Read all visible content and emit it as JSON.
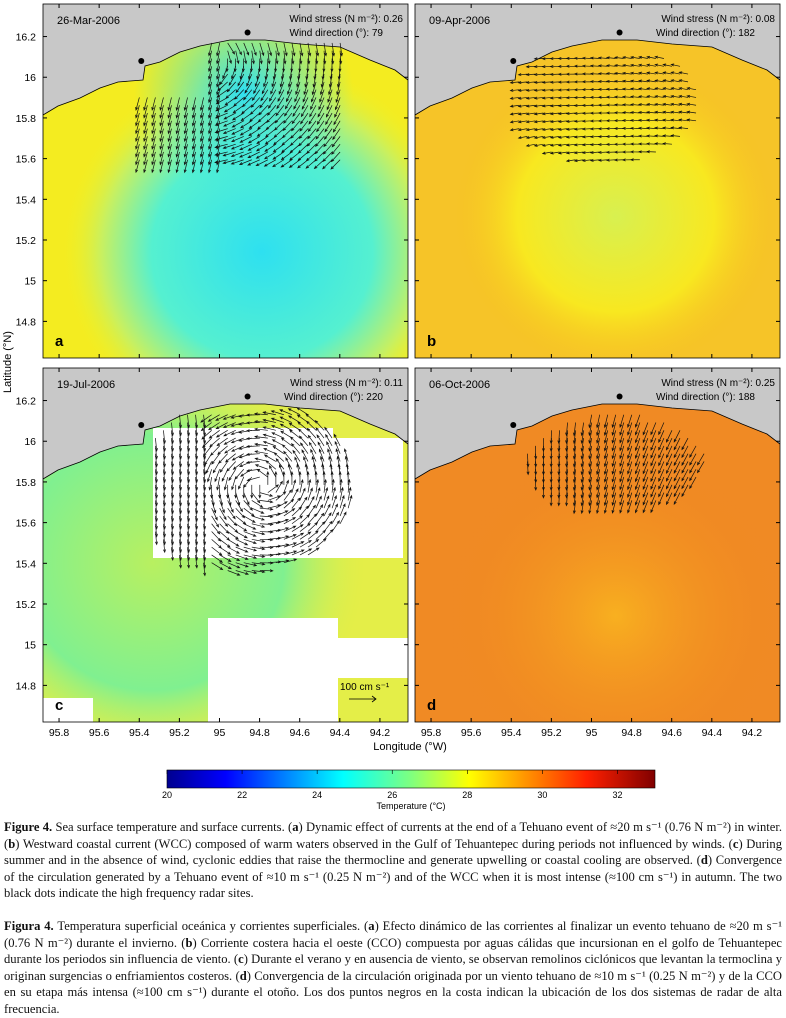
{
  "chart_data": {
    "type": "heatmap",
    "xlabel": "Longitude (°W)",
    "ylabel": "Latitude (°N)",
    "xticks": [
      "95.8",
      "95.6",
      "95.4",
      "95.2",
      "95",
      "94.8",
      "94.6",
      "94.4",
      "94.2"
    ],
    "yticks": [
      "16.2",
      "16",
      "15.8",
      "15.6",
      "15.4",
      "15.2",
      "15",
      "14.8"
    ],
    "xlim": [
      95.88,
      94.06
    ],
    "ylim": [
      14.62,
      16.36
    ],
    "panels": [
      {
        "letter": "a",
        "date": "26-Mar-2006",
        "wind_stress": "Wind stress (N m⁻²): 0.26",
        "wind_direction": "Wind direction (°): 79",
        "pattern": "cold tongue, offshore jet with dipole eddies"
      },
      {
        "letter": "b",
        "date": "09-Apr-2006",
        "wind_stress": "Wind stress (N m⁻²): 0.08",
        "wind_direction": "Wind direction (°): 182",
        "pattern": "westward coastal current, warm"
      },
      {
        "letter": "c",
        "date": "19-Jul-2006",
        "wind_stress": "Wind stress (N m⁻²): 0.11",
        "wind_direction": "Wind direction (°): 220",
        "pattern": "cyclonic eddy, gaps in SST"
      },
      {
        "letter": "d",
        "date": "06-Oct-2006",
        "wind_stress": "Wind stress (N m⁻²): 0.25",
        "wind_direction": "Wind direction (°): 188",
        "pattern": "convergence, warm"
      }
    ],
    "scale_label": "100 cm s⁻¹",
    "colorbar": {
      "label": "Temperature (°C)",
      "ticks": [
        "20",
        "22",
        "24",
        "26",
        "28",
        "30",
        "32"
      ],
      "range": [
        20,
        33
      ],
      "colormap": "jet"
    },
    "colors": {
      "land": "#c8c8c8",
      "arrows": "#111111",
      "radar_sites": "#000000"
    }
  },
  "caption_en": [
    {
      "t": "Figure 4.",
      "b": true
    },
    {
      "t": " Sea surface temperature and surface currents. ("
    },
    {
      "t": "a",
      "b": true
    },
    {
      "t": ") Dynamic effect of currents at the end of a Tehuano event of ≈20 m s⁻¹ (0.76 N m⁻²) in winter. ("
    },
    {
      "t": "b",
      "b": true
    },
    {
      "t": ") Westward coastal current (WCC) composed of warm waters observed in the Gulf of Tehuantepec during periods not influenced by winds. ("
    },
    {
      "t": "c",
      "b": true
    },
    {
      "t": ") During summer and in the absence of wind, cyclonic eddies that raise the thermocline and generate upwelling or coastal cooling are observed. ("
    },
    {
      "t": "d",
      "b": true
    },
    {
      "t": ") Convergence of the circulation generated by a Tehuano event of ≈10 m s⁻¹ (0.25 N m⁻²) and of the WCC when it is most intense (≈100 cm s⁻¹) in autumn. The two black dots indicate the high frequency radar sites."
    }
  ],
  "caption_es": [
    {
      "t": "Figura 4.",
      "b": true
    },
    {
      "t": " Temperatura superficial oceánica y corrientes superficiales. ("
    },
    {
      "t": "a",
      "b": true
    },
    {
      "t": ") Efecto dinámico de las corrientes al finalizar un evento tehuano de ≈20 m s⁻¹ (0.76 N m⁻²) durante el invierno. ("
    },
    {
      "t": "b",
      "b": true
    },
    {
      "t": ") Corriente costera hacia el oeste (CCO) compuesta por aguas cálidas que incursionan en el golfo de Tehuantepec durante los periodos sin influencia de viento. ("
    },
    {
      "t": "c",
      "b": true
    },
    {
      "t": ") Durante el verano y en ausencia de viento, se observan remolinos ciclónicos que levantan la termoclina y originan surgencias o enfriamientos costeros. ("
    },
    {
      "t": "d",
      "b": true
    },
    {
      "t": ") Convergencia de la circulación originada por un viento tehuano de ≈10 m s⁻¹ (0.25 N m⁻²) y de la CCO en su etapa más intensa (≈100 cm s⁻¹) durante el otoño. Los dos puntos negros en la costa indican la ubicación de los dos sistemas de radar de alta frecuencia."
    }
  ]
}
